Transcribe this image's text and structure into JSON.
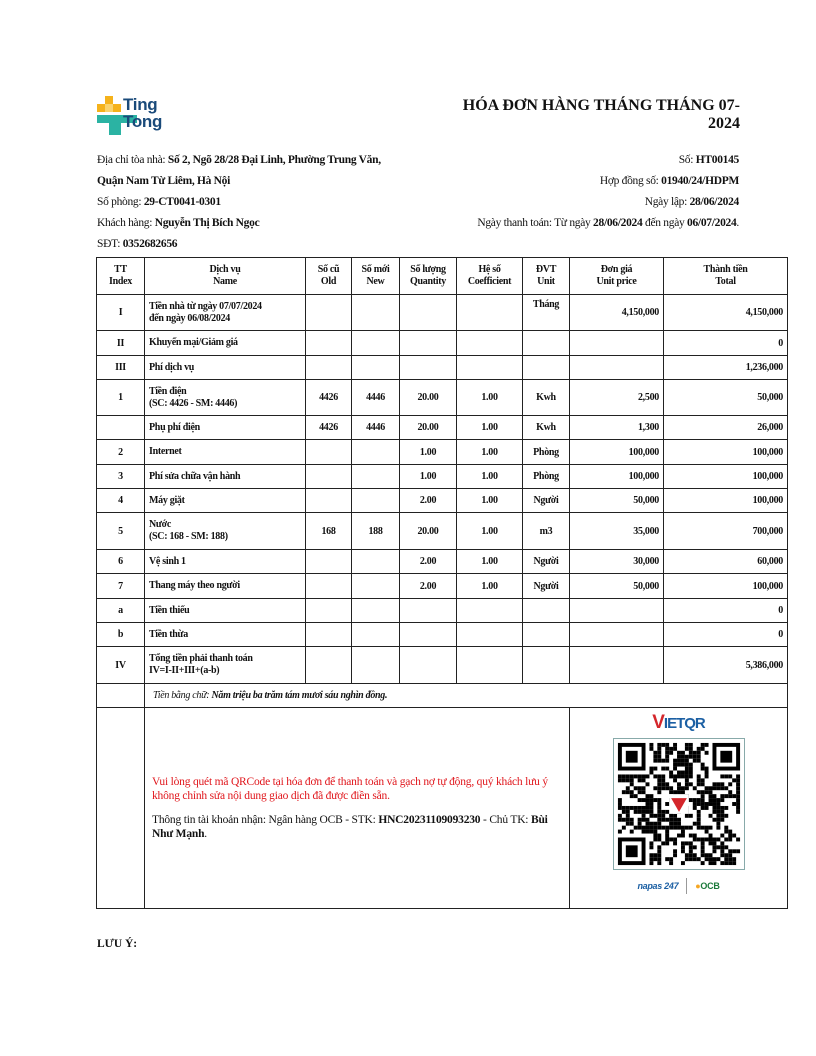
{
  "logo": {
    "line1": "Ting",
    "line2": "Tong"
  },
  "title": "HÓA ĐƠN HÀNG THÁNG THÁNG 07-2024",
  "left_info": [
    {
      "label": "Địa chỉ tòa nhà: ",
      "value": "Số 2, Ngõ 28/28 Đại Linh, Phường Trung Văn,"
    },
    {
      "label": "",
      "value": "Quận Nam Từ Liêm, Hà Nội"
    },
    {
      "label": "Số phòng: ",
      "value": "29-CT0041-0301"
    },
    {
      "label": "Khách hàng: ",
      "value": "Nguyễn Thị Bích Ngọc"
    },
    {
      "label": "SĐT: ",
      "value": "0352682656"
    }
  ],
  "right_info": {
    "so_label": "Số: ",
    "so": "HT00145",
    "hopdong_label": "Hợp đồng số: ",
    "hopdong": "01940/24/HDPM",
    "ngaylap_label": "Ngày lập: ",
    "ngaylap": "28/06/2024",
    "thanhtoan_label": "Ngày thanh toán: Từ ngày ",
    "from": "28/06/2024",
    "mid": " đến ngày ",
    "to": "06/07/2024",
    "end": "."
  },
  "table": {
    "headers": [
      [
        "TT",
        "Index"
      ],
      [
        "Dịch vụ",
        "Name"
      ],
      [
        "Số cũ",
        "Old"
      ],
      [
        "Số mới",
        "New"
      ],
      [
        "Số lượng",
        "Quantity"
      ],
      [
        "Hệ số",
        "Coefficient"
      ],
      [
        "ĐVT",
        "Unit"
      ],
      [
        "Đơn giá",
        "Unit price"
      ],
      [
        "Thành tiền",
        "Total"
      ]
    ],
    "rows": [
      [
        "I",
        [
          "Tiền nhà từ ngày 07/07/2024",
          "đến ngày 06/08/2024"
        ],
        "",
        "",
        "",
        "",
        "Tháng",
        "4,150,000",
        "4,150,000"
      ],
      [
        "II",
        [
          "Khuyến mại/Giảm giá"
        ],
        "",
        "",
        "",
        "",
        "",
        "",
        "0"
      ],
      [
        "III",
        [
          "Phí dịch vụ"
        ],
        "",
        "",
        "",
        "",
        "",
        "",
        "1,236,000"
      ],
      [
        "1",
        [
          "Tiền điện",
          "(SC: 4426 - SM: 4446)"
        ],
        "4426",
        "4446",
        "20.00",
        "1.00",
        "Kwh",
        "2,500",
        "50,000"
      ],
      [
        "",
        [
          "Phụ phí điện"
        ],
        "4426",
        "4446",
        "20.00",
        "1.00",
        "Kwh",
        "1,300",
        "26,000"
      ],
      [
        "2",
        [
          "Internet"
        ],
        "",
        "",
        "1.00",
        "1.00",
        "Phòng",
        "100,000",
        "100,000"
      ],
      [
        "3",
        [
          "Phí sửa chữa vận hành"
        ],
        "",
        "",
        "1.00",
        "1.00",
        "Phòng",
        "100,000",
        "100,000"
      ],
      [
        "4",
        [
          "Máy giặt"
        ],
        "",
        "",
        "2.00",
        "1.00",
        "Người",
        "50,000",
        "100,000"
      ],
      [
        "5",
        [
          "Nước",
          "(SC: 168 - SM: 188)"
        ],
        "168",
        "188",
        "20.00",
        "1.00",
        "m3",
        "35,000",
        "700,000"
      ],
      [
        "6",
        [
          "Vệ sinh 1"
        ],
        "",
        "",
        "2.00",
        "1.00",
        "Người",
        "30,000",
        "60,000"
      ],
      [
        "7",
        [
          "Thang máy theo người"
        ],
        "",
        "",
        "2.00",
        "1.00",
        "Người",
        "50,000",
        "100,000"
      ],
      [
        "a",
        [
          "Tiền thiếu"
        ],
        "",
        "",
        "",
        "",
        "",
        "",
        "0"
      ],
      [
        "b",
        [
          "Tiền thừa"
        ],
        "",
        "",
        "",
        "",
        "",
        "",
        "0"
      ],
      [
        "IV",
        [
          "Tổng tiền phải thanh toán",
          "IV=I-II+III+(a-b)"
        ],
        "",
        "",
        "",
        "",
        "",
        "",
        "5,386,000"
      ]
    ],
    "words_label": "Tiền bằng chữ: ",
    "words_value": "Năm triệu ba trăm tám mươi sáu nghìn đồng."
  },
  "payment": {
    "notice": "Vui lòng quét mã QRCode tại hóa đơn để thanh toán và gạch nợ tự động, quý khách lưu ý không chỉnh sửa nội dung giao dịch đã được điền sẵn.",
    "account_prefix": "Thông tin tài khoản nhận: Ngân hàng OCB - STK: ",
    "account": "HNC20231109093230",
    "owner_prefix": " - Chủ TK: ",
    "owner": "Bùi Như Mạnh",
    "owner_end": ".",
    "vietqr_v": "V",
    "vietqr_rest": "IETQR",
    "napas": "napas 247",
    "ocb": "OCB",
    "notice_color": "#e0151b"
  },
  "note_label": "LƯU Ý:"
}
